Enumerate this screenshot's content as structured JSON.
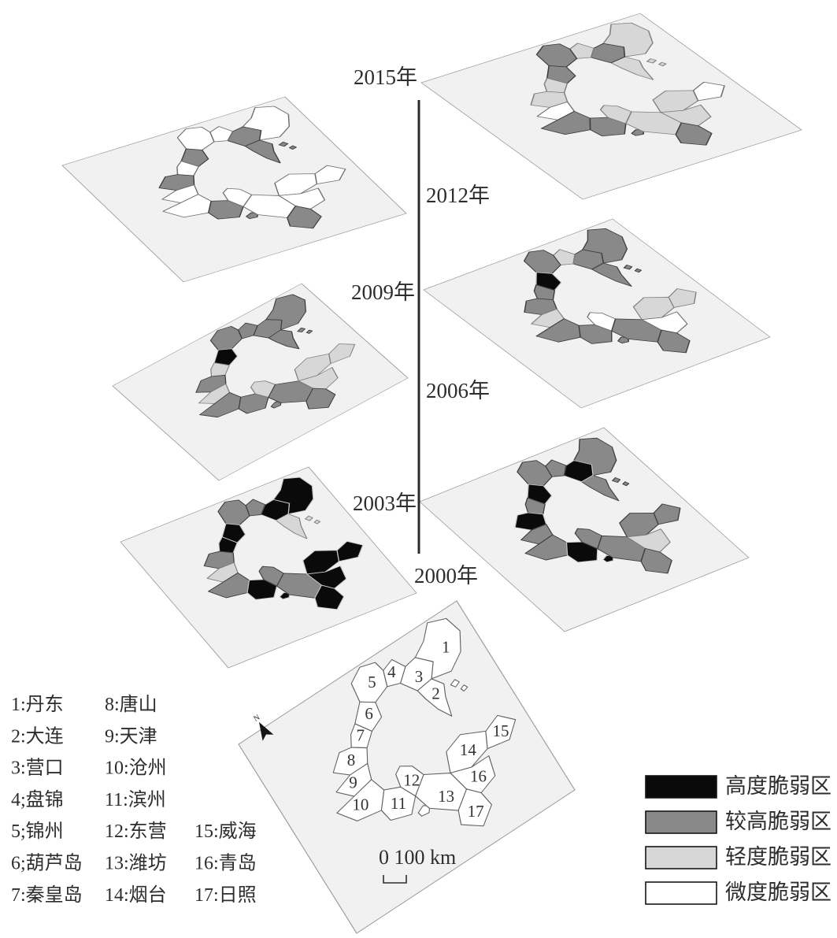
{
  "legend": {
    "items": [
      {
        "key": "high",
        "label": "高度脆弱区",
        "color": "#0a0a0a"
      },
      {
        "key": "higher",
        "label": "较高脆弱区",
        "color": "#898989"
      },
      {
        "key": "light",
        "label": "轻度脆弱区",
        "color": "#d7d7d7"
      },
      {
        "key": "minimal",
        "label": "微度脆弱区",
        "color": "#ffffff"
      }
    ]
  },
  "scale_bar": {
    "label": "0 100 km"
  },
  "north_arrow": {
    "label": "N"
  },
  "city_index": [
    "1:丹东",
    "2:大连",
    "3:营口",
    "4;盘锦",
    "5;锦州",
    "6;葫芦岛",
    "7:秦皇岛",
    "8:唐山",
    "9:天津",
    "10:沧州",
    "11:滨州",
    "12:东营",
    "13:潍坊",
    "14:烟台",
    "15:威海",
    "16:青岛",
    "17:日照"
  ],
  "regions": {
    "1": "丹东",
    "2": "大连",
    "3": "营口",
    "4": "盘锦",
    "5": "锦州",
    "6": "葫芦岛",
    "7": "秦皇岛",
    "8": "唐山",
    "9": "天津",
    "10": "沧州",
    "11": "滨州",
    "12": "东营",
    "13": "潍坊",
    "14": "烟台",
    "15": "威海",
    "16": "青岛",
    "17": "日照"
  },
  "chart_data": {
    "type": "choropleth_map_timeseries",
    "classes": {
      "high": "高度脆弱区",
      "higher": "较高脆弱区",
      "light": "轻度脆弱区",
      "minimal": "微度脆弱区"
    },
    "years": [
      {
        "year": "2015年",
        "classification": {
          "1": "light",
          "2": "light",
          "3": "higher",
          "4": "light",
          "5": "higher",
          "6": "higher",
          "7": "light",
          "8": "light",
          "9": "minimal",
          "10": "higher",
          "11": "higher",
          "12": "light",
          "13": "light",
          "14": "light",
          "15": "minimal",
          "16": "light",
          "17": "higher"
        }
      },
      {
        "year": "2012年",
        "classification": {
          "1": "minimal",
          "2": "higher",
          "3": "higher",
          "4": "minimal",
          "5": "minimal",
          "6": "higher",
          "7": "minimal",
          "8": "higher",
          "9": "minimal",
          "10": "minimal",
          "11": "higher",
          "12": "minimal",
          "13": "minimal",
          "14": "minimal",
          "15": "minimal",
          "16": "minimal",
          "17": "higher"
        }
      },
      {
        "year": "2009年",
        "classification": {
          "1": "higher",
          "2": "higher",
          "3": "higher",
          "4": "light",
          "5": "higher",
          "6": "high",
          "7": "higher",
          "8": "higher",
          "9": "light",
          "10": "higher",
          "11": "higher",
          "12": "minimal",
          "13": "higher",
          "14": "light",
          "15": "light",
          "16": "minimal",
          "17": "higher"
        }
      },
      {
        "year": "2006年",
        "classification": {
          "1": "higher",
          "2": "higher",
          "3": "higher",
          "4": "higher",
          "5": "higher",
          "6": "high",
          "7": "light",
          "8": "higher",
          "9": "light",
          "10": "higher",
          "11": "higher",
          "12": "light",
          "13": "higher",
          "14": "light",
          "15": "light",
          "16": "light",
          "17": "higher"
        }
      },
      {
        "year": "2003年",
        "classification": {
          "1": "higher",
          "2": "higher",
          "3": "high",
          "4": "higher",
          "5": "higher",
          "6": "high",
          "7": "higher",
          "8": "high",
          "9": "higher",
          "10": "higher",
          "11": "high",
          "12": "higher",
          "13": "higher",
          "14": "higher",
          "15": "higher",
          "16": "light",
          "17": "higher"
        }
      },
      {
        "year": "2000年",
        "classification": {
          "1": "high",
          "2": "light",
          "3": "high",
          "4": "higher",
          "5": "higher",
          "6": "high",
          "7": "high",
          "8": "higher",
          "9": "light",
          "10": "higher",
          "11": "high",
          "12": "higher",
          "13": "higher",
          "14": "high",
          "15": "high",
          "16": "high",
          "17": "high"
        }
      }
    ]
  }
}
